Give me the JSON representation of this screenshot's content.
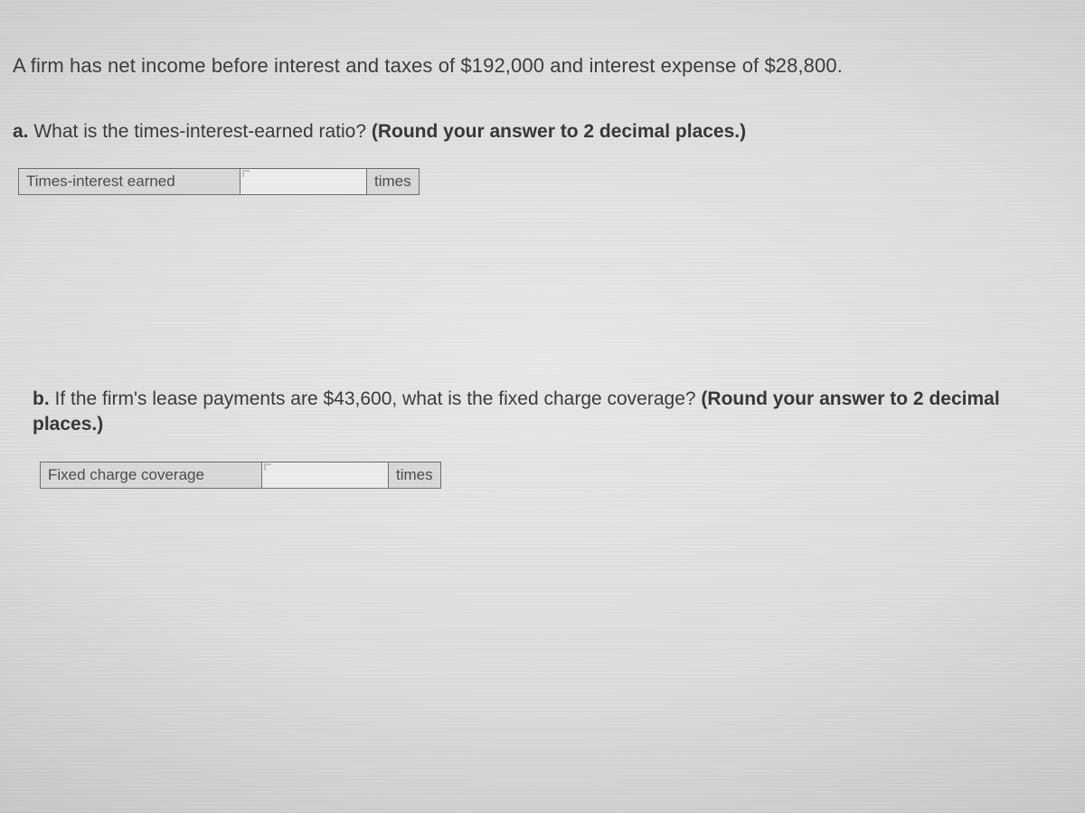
{
  "intro_text": "A firm has net income before interest and taxes of $192,000 and interest expense of $28,800.",
  "part_a": {
    "letter": "a.",
    "question": " What is the times-interest-earned ratio? ",
    "hint": "(Round your answer to 2 decimal places.)",
    "label": "Times-interest earned",
    "value": "",
    "unit": "times"
  },
  "part_b": {
    "letter": "b.",
    "question": " If the firm's lease payments are $43,600, what is the fixed charge coverage? ",
    "hint": "(Round your answer to 2 decimal places.)",
    "label": "Fixed charge coverage",
    "value": "",
    "unit": "times"
  },
  "colors": {
    "cell_bg": "#d6d9d6",
    "cell_border": "#6c6f6c",
    "input_bg": "#eceeec",
    "text": "#3a3c3b"
  }
}
